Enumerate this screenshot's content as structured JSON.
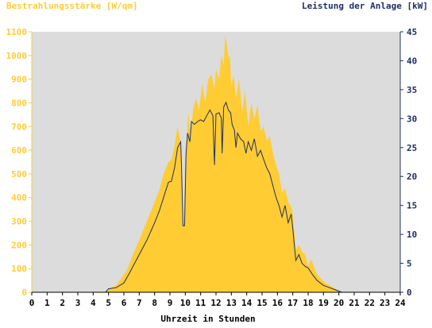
{
  "chart_data": {
    "type": "area",
    "left_axis_title": "Bestrahlungsstärke [W/qm]",
    "right_axis_title": "Leistung der Anlage [kW]",
    "xlabel": "Uhrzeit in Stunden",
    "x_ticks": [
      "0",
      "1",
      "2",
      "3",
      "4",
      "5",
      "6",
      "7",
      "8",
      "9",
      "10",
      "11",
      "12",
      "13",
      "14",
      "15",
      "16",
      "17",
      "18",
      "19",
      "20",
      "21",
      "22",
      "23",
      "24"
    ],
    "y_left_ticks": [
      "0",
      "100",
      "200",
      "300",
      "400",
      "500",
      "600",
      "700",
      "800",
      "900",
      "1000",
      "1100"
    ],
    "y_right_ticks": [
      "0",
      "5",
      "10",
      "15",
      "20",
      "25",
      "30",
      "35",
      "40",
      "45"
    ],
    "xlim": [
      0,
      24
    ],
    "ylim_left": [
      0,
      1100
    ],
    "ylim_right": [
      0,
      45
    ],
    "grid": false,
    "colors": {
      "irradiance": "#FFCC33",
      "power": "#1F2F66",
      "plot_background": "#DCDCDC",
      "left_axis": "#FFCC33",
      "right_axis": "#1F2F66"
    },
    "series": [
      {
        "name": "Bestrahlungsstärke [W/qm]",
        "axis": "left",
        "type": "area",
        "points": [
          [
            0,
            0
          ],
          [
            4.8,
            0
          ],
          [
            5.0,
            15
          ],
          [
            5.5,
            30
          ],
          [
            5.8,
            55
          ],
          [
            6.2,
            95
          ],
          [
            6.6,
            160
          ],
          [
            7.0,
            220
          ],
          [
            7.5,
            300
          ],
          [
            8.0,
            380
          ],
          [
            8.3,
            430
          ],
          [
            8.6,
            500
          ],
          [
            8.9,
            550
          ],
          [
            9.1,
            560
          ],
          [
            9.3,
            620
          ],
          [
            9.5,
            700
          ],
          [
            9.65,
            650
          ],
          [
            9.75,
            520
          ],
          [
            9.8,
            300
          ],
          [
            9.9,
            280
          ],
          [
            10.0,
            560
          ],
          [
            10.1,
            660
          ],
          [
            10.2,
            760
          ],
          [
            10.35,
            660
          ],
          [
            10.5,
            770
          ],
          [
            10.7,
            820
          ],
          [
            10.9,
            770
          ],
          [
            11.1,
            880
          ],
          [
            11.3,
            800
          ],
          [
            11.5,
            900
          ],
          [
            11.7,
            920
          ],
          [
            11.9,
            860
          ],
          [
            12.0,
            940
          ],
          [
            12.2,
            900
          ],
          [
            12.35,
            1000
          ],
          [
            12.5,
            960
          ],
          [
            12.6,
            1090
          ],
          [
            12.7,
            1050
          ],
          [
            12.8,
            990
          ],
          [
            12.9,
            1000
          ],
          [
            13.0,
            870
          ],
          [
            13.15,
            920
          ],
          [
            13.3,
            820
          ],
          [
            13.5,
            900
          ],
          [
            13.7,
            760
          ],
          [
            13.9,
            850
          ],
          [
            14.1,
            700
          ],
          [
            14.3,
            800
          ],
          [
            14.5,
            730
          ],
          [
            14.7,
            790
          ],
          [
            14.9,
            680
          ],
          [
            15.1,
            700
          ],
          [
            15.3,
            640
          ],
          [
            15.5,
            660
          ],
          [
            15.7,
            590
          ],
          [
            15.9,
            540
          ],
          [
            16.1,
            500
          ],
          [
            16.3,
            420
          ],
          [
            16.5,
            440
          ],
          [
            16.7,
            380
          ],
          [
            16.9,
            360
          ],
          [
            17.0,
            330
          ],
          [
            17.2,
            180
          ],
          [
            17.4,
            200
          ],
          [
            17.6,
            170
          ],
          [
            17.8,
            160
          ],
          [
            18.0,
            110
          ],
          [
            18.2,
            140
          ],
          [
            18.5,
            85
          ],
          [
            18.8,
            60
          ],
          [
            19.1,
            40
          ],
          [
            19.5,
            25
          ],
          [
            19.9,
            10
          ],
          [
            20.2,
            0
          ],
          [
            24,
            0
          ]
        ]
      },
      {
        "name": "Leistung der Anlage [kW]",
        "axis": "right",
        "type": "line",
        "points": [
          [
            0,
            0
          ],
          [
            4.8,
            0
          ],
          [
            5.0,
            0.6
          ],
          [
            5.5,
            0.8
          ],
          [
            6.0,
            1.6
          ],
          [
            6.3,
            3.0
          ],
          [
            6.7,
            5.0
          ],
          [
            7.0,
            6.5
          ],
          [
            7.5,
            9.0
          ],
          [
            8.0,
            12.0
          ],
          [
            8.3,
            14.0
          ],
          [
            8.6,
            16.5
          ],
          [
            8.9,
            19.0
          ],
          [
            9.1,
            19.2
          ],
          [
            9.3,
            21.5
          ],
          [
            9.5,
            25.0
          ],
          [
            9.7,
            26.0
          ],
          [
            9.75,
            22.0
          ],
          [
            9.85,
            11.5
          ],
          [
            9.95,
            11.5
          ],
          [
            10.05,
            24.0
          ],
          [
            10.15,
            27.5
          ],
          [
            10.3,
            26.0
          ],
          [
            10.4,
            29.5
          ],
          [
            10.6,
            29.0
          ],
          [
            10.8,
            29.5
          ],
          [
            11.0,
            29.8
          ],
          [
            11.2,
            29.5
          ],
          [
            11.4,
            30.5
          ],
          [
            11.6,
            31.5
          ],
          [
            11.8,
            30.5
          ],
          [
            11.9,
            22.0
          ],
          [
            12.0,
            30.8
          ],
          [
            12.2,
            31.0
          ],
          [
            12.35,
            30.0
          ],
          [
            12.4,
            24.0
          ],
          [
            12.5,
            32.0
          ],
          [
            12.65,
            32.8
          ],
          [
            12.8,
            31.5
          ],
          [
            12.95,
            31.0
          ],
          [
            13.05,
            29.0
          ],
          [
            13.2,
            28.0
          ],
          [
            13.3,
            25.0
          ],
          [
            13.4,
            27.5
          ],
          [
            13.6,
            26.5
          ],
          [
            13.8,
            26.0
          ],
          [
            13.95,
            24.0
          ],
          [
            14.1,
            26.0
          ],
          [
            14.3,
            24.5
          ],
          [
            14.5,
            26.5
          ],
          [
            14.7,
            23.5
          ],
          [
            14.9,
            24.5
          ],
          [
            15.1,
            23.0
          ],
          [
            15.3,
            21.5
          ],
          [
            15.5,
            20.5
          ],
          [
            15.7,
            18.5
          ],
          [
            15.9,
            16.5
          ],
          [
            16.1,
            15.0
          ],
          [
            16.3,
            13.0
          ],
          [
            16.5,
            15.0
          ],
          [
            16.7,
            12.0
          ],
          [
            16.9,
            13.5
          ],
          [
            17.0,
            11.0
          ],
          [
            17.2,
            5.5
          ],
          [
            17.4,
            6.5
          ],
          [
            17.6,
            5.0
          ],
          [
            17.8,
            4.5
          ],
          [
            18.0,
            4.2
          ],
          [
            18.3,
            3.0
          ],
          [
            18.6,
            2.0
          ],
          [
            19.0,
            1.2
          ],
          [
            19.4,
            0.8
          ],
          [
            19.8,
            0.4
          ],
          [
            20.2,
            0
          ],
          [
            24,
            0
          ]
        ]
      }
    ]
  }
}
